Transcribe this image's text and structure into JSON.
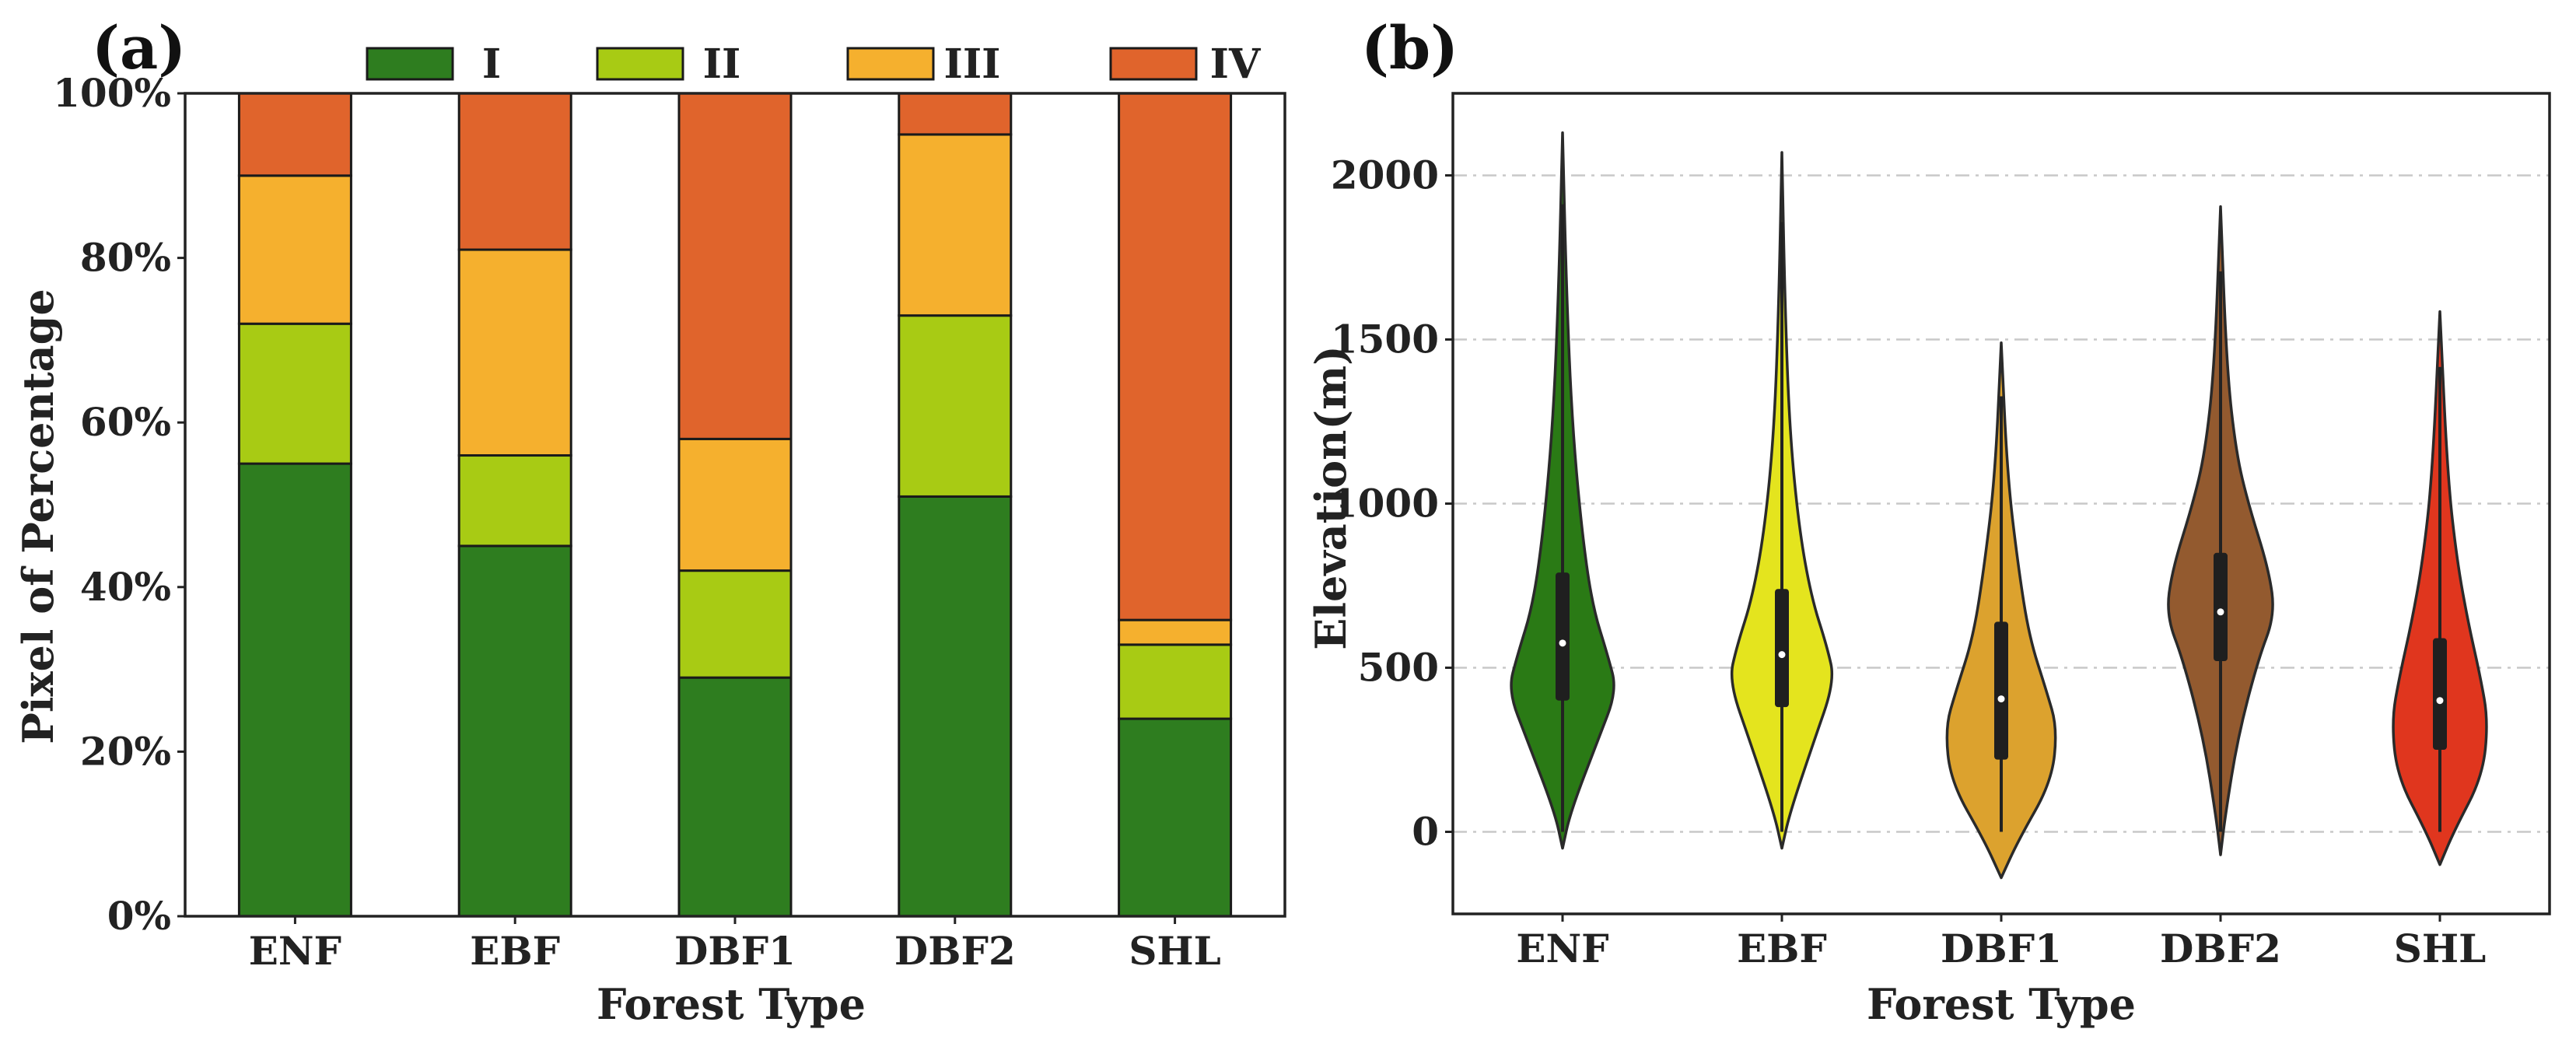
{
  "chart_data": [
    {
      "panel_label": "(a)",
      "type": "bar",
      "stacked": true,
      "categories": [
        "ENF",
        "EBF",
        "DBF1",
        "DBF2",
        "SHL"
      ],
      "series": [
        {
          "name": "I",
          "color": "#2e7d1f",
          "values": [
            55,
            45,
            29,
            51,
            24
          ]
        },
        {
          "name": "II",
          "color": "#a8cb14",
          "values": [
            17,
            11,
            13,
            22,
            9
          ]
        },
        {
          "name": "III",
          "color": "#f5b02e",
          "values": [
            18,
            25,
            16,
            22,
            3
          ]
        },
        {
          "name": "IV",
          "color": "#e0642c",
          "values": [
            10,
            19,
            42,
            5,
            64
          ]
        }
      ],
      "xlabel": "Forest Type",
      "ylabel": "Pixel of Percentage",
      "ylim": [
        0,
        100
      ],
      "yticks": [
        0,
        20,
        40,
        60,
        80,
        100
      ],
      "ytick_labels": [
        "0%",
        "20%",
        "40%",
        "60%",
        "80%",
        "100%"
      ],
      "legend_position": "top"
    },
    {
      "panel_label": "(b)",
      "type": "violin",
      "categories": [
        "ENF",
        "EBF",
        "DBF1",
        "DBF2",
        "SHL"
      ],
      "colors": [
        "#2a7a15",
        "#e4e41e",
        "#dca22e",
        "#935a2f",
        "#e0361e"
      ],
      "stats": [
        {
          "name": "ENF",
          "min": -50,
          "q1": 400,
          "median": 575,
          "q3": 790,
          "max": 2130
        },
        {
          "name": "EBF",
          "min": -50,
          "q1": 380,
          "median": 540,
          "q3": 740,
          "max": 2070
        },
        {
          "name": "DBF1",
          "min": -140,
          "q1": 220,
          "median": 405,
          "q3": 640,
          "max": 1490
        },
        {
          "name": "DBF2",
          "min": -70,
          "q1": 520,
          "median": 670,
          "q3": 850,
          "max": 1905
        },
        {
          "name": "SHL",
          "min": -100,
          "q1": 250,
          "median": 400,
          "q3": 590,
          "max": 1585
        }
      ],
      "xlabel": "Forest Type",
      "ylabel": "Elevation(m)",
      "ylim": [
        -250,
        2250
      ],
      "yticks": [
        0,
        500,
        1000,
        1500,
        2000
      ],
      "ytick_labels": [
        "0",
        "500",
        "1000",
        "1500",
        "2000"
      ],
      "grid": "horizontal-dashed"
    }
  ]
}
